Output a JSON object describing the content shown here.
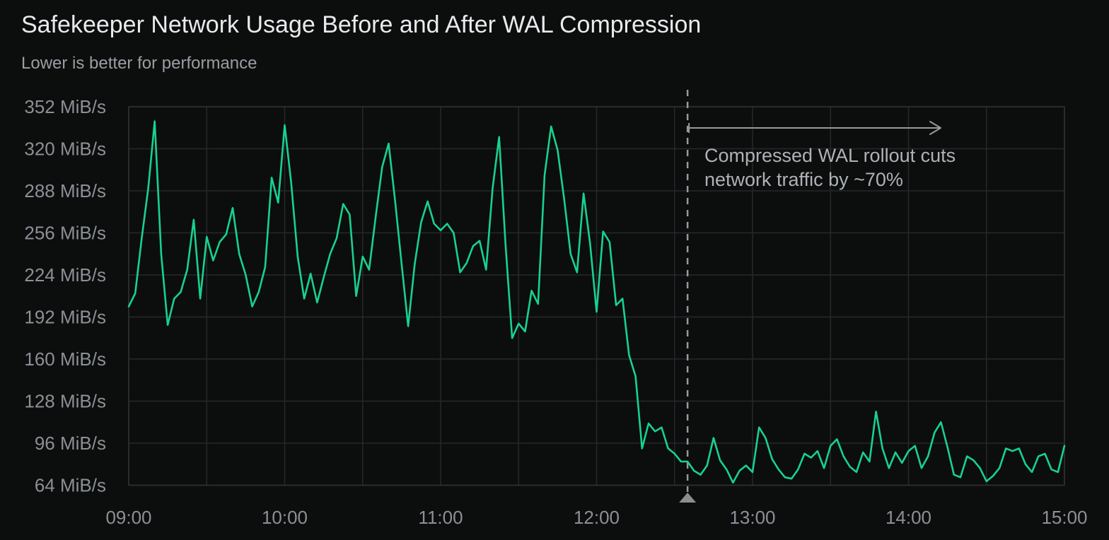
{
  "header": {
    "title": "Safekeeper Network Usage Before and After WAL Compression",
    "subtitle": "Lower is better for performance"
  },
  "colors": {
    "background": "#0c0d0d",
    "title_text": "#e8eaec",
    "subtitle_text": "#9a9ea3",
    "axis_label": "#8c9096",
    "grid": "#26282b",
    "border": "#2f3134",
    "series": "#17d28f",
    "annotation_text": "#aeb2b7",
    "annotation_line": "#979a9e",
    "marker": "#8b8e91"
  },
  "chart_data": {
    "type": "line",
    "title": "Safekeeper Network Usage Before and After WAL Compression",
    "subtitle": "Lower is better for performance",
    "grid": true,
    "x_axis": {
      "ticks": [
        "09:00",
        "10:00",
        "11:00",
        "12:00",
        "13:00",
        "14:00",
        "15:00"
      ],
      "start": "09:00",
      "end": "15:00",
      "gridline_every_minutes": 30
    },
    "y_axis": {
      "ticks": [
        352,
        320,
        288,
        256,
        224,
        192,
        160,
        128,
        96,
        64
      ],
      "unit": "MiB/s",
      "min": 64,
      "max": 352
    },
    "annotation": {
      "time": "12:35",
      "line1": "Compressed WAL rollout cuts",
      "line2": "network traffic by ~70%",
      "arrow_direction": "right"
    },
    "series": [
      {
        "color": "#17d28f",
        "start": "09:00",
        "step_minutes": 2.5,
        "unit": "MiB/s",
        "values": [
          200,
          210,
          252,
          290,
          341,
          240,
          186,
          206,
          211,
          228,
          266,
          206,
          253,
          235,
          249,
          255,
          275,
          240,
          224,
          200,
          211,
          230,
          298,
          279,
          338,
          294,
          238,
          206,
          225,
          203,
          222,
          240,
          252,
          278,
          270,
          208,
          238,
          228,
          268,
          306,
          324,
          280,
          232,
          185,
          232,
          264,
          280,
          263,
          258,
          263,
          256,
          226,
          233,
          246,
          250,
          228,
          290,
          329,
          246,
          176,
          187,
          181,
          212,
          202,
          300,
          337,
          319,
          282,
          240,
          226,
          286,
          248,
          196,
          257,
          249,
          201,
          206,
          163,
          147,
          92,
          111,
          105,
          108,
          92,
          88,
          82,
          82,
          75,
          72,
          79,
          100,
          83,
          76,
          66,
          75,
          79,
          74,
          108,
          100,
          84,
          76,
          70,
          69,
          76,
          88,
          85,
          90,
          77,
          94,
          99,
          86,
          78,
          74,
          89,
          82,
          120,
          92,
          77,
          89,
          81,
          90,
          94,
          77,
          86,
          104,
          112,
          93,
          72,
          70,
          86,
          83,
          77,
          67,
          71,
          77,
          92,
          90,
          92,
          80,
          74,
          86,
          88,
          76,
          74,
          94
        ]
      }
    ]
  }
}
